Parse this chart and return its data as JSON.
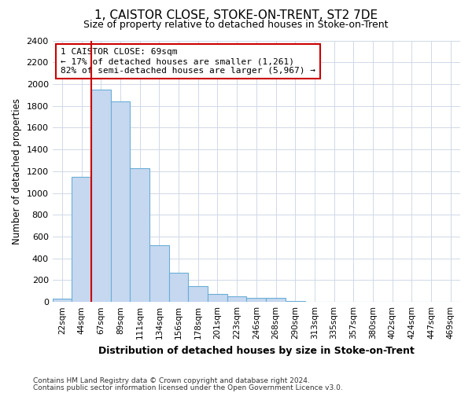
{
  "title": "1, CAISTOR CLOSE, STOKE-ON-TRENT, ST2 7DE",
  "subtitle": "Size of property relative to detached houses in Stoke-on-Trent",
  "xlabel": "Distribution of detached houses by size in Stoke-on-Trent",
  "ylabel": "Number of detached properties",
  "categories": [
    "22sqm",
    "44sqm",
    "67sqm",
    "89sqm",
    "111sqm",
    "134sqm",
    "156sqm",
    "178sqm",
    "201sqm",
    "223sqm",
    "246sqm",
    "268sqm",
    "290sqm",
    "313sqm",
    "335sqm",
    "357sqm",
    "380sqm",
    "402sqm",
    "424sqm",
    "447sqm",
    "469sqm"
  ],
  "values": [
    30,
    1150,
    1950,
    1840,
    1230,
    520,
    270,
    145,
    75,
    50,
    40,
    35,
    5,
    2,
    1,
    1,
    0,
    0,
    0,
    0,
    0
  ],
  "bar_color": "#c5d8f0",
  "bar_edge_color": "#6baed6",
  "annotation_title": "1 CAISTOR CLOSE: 69sqm",
  "annotation_line1": "← 17% of detached houses are smaller (1,261)",
  "annotation_line2": "82% of semi-detached houses are larger (5,967) →",
  "annotation_line_color": "#cc0000",
  "red_line_bar_index": 2,
  "ylim": [
    0,
    2400
  ],
  "yticks": [
    0,
    200,
    400,
    600,
    800,
    1000,
    1200,
    1400,
    1600,
    1800,
    2000,
    2200,
    2400
  ],
  "footnote1": "Contains HM Land Registry data © Crown copyright and database right 2024.",
  "footnote2": "Contains public sector information licensed under the Open Government Licence v3.0.",
  "bg_color": "#ffffff",
  "grid_color": "#d0d8e8"
}
